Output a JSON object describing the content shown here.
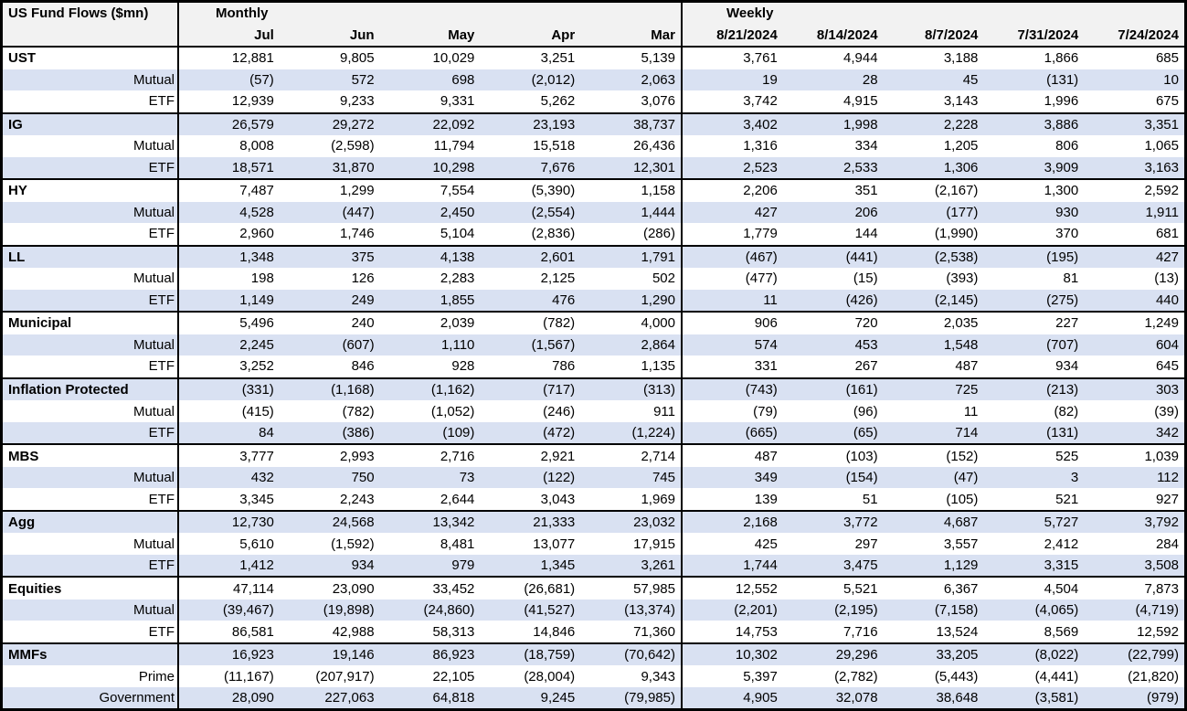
{
  "chart_data": {
    "type": "table",
    "title": "US Fund Flows ($mn)",
    "section_labels": {
      "monthly": "Monthly",
      "weekly": "Weekly"
    },
    "monthly_columns": [
      "Jul",
      "Jun",
      "May",
      "Apr",
      "Mar"
    ],
    "weekly_columns": [
      "8/21/2024",
      "8/14/2024",
      "8/7/2024",
      "7/31/2024",
      "7/24/2024"
    ],
    "groups": [
      {
        "rows": [
          {
            "label": "UST",
            "monthly": [
              "12,881",
              "9,805",
              "10,029",
              "3,251",
              "5,139"
            ],
            "weekly": [
              "3,761",
              "4,944",
              "3,188",
              "1,866",
              "685"
            ]
          },
          {
            "label": "Mutual",
            "monthly": [
              "(57)",
              "572",
              "698",
              "(2,012)",
              "2,063"
            ],
            "weekly": [
              "19",
              "28",
              "45",
              "(131)",
              "10"
            ]
          },
          {
            "label": "ETF",
            "monthly": [
              "12,939",
              "9,233",
              "9,331",
              "5,262",
              "3,076"
            ],
            "weekly": [
              "3,742",
              "4,915",
              "3,143",
              "1,996",
              "675"
            ]
          }
        ]
      },
      {
        "rows": [
          {
            "label": "IG",
            "monthly": [
              "26,579",
              "29,272",
              "22,092",
              "23,193",
              "38,737"
            ],
            "weekly": [
              "3,402",
              "1,998",
              "2,228",
              "3,886",
              "3,351"
            ]
          },
          {
            "label": "Mutual",
            "monthly": [
              "8,008",
              "(2,598)",
              "11,794",
              "15,518",
              "26,436"
            ],
            "weekly": [
              "1,316",
              "334",
              "1,205",
              "806",
              "1,065"
            ]
          },
          {
            "label": "ETF",
            "monthly": [
              "18,571",
              "31,870",
              "10,298",
              "7,676",
              "12,301"
            ],
            "weekly": [
              "2,523",
              "2,533",
              "1,306",
              "3,909",
              "3,163"
            ]
          }
        ]
      },
      {
        "rows": [
          {
            "label": "HY",
            "monthly": [
              "7,487",
              "1,299",
              "7,554",
              "(5,390)",
              "1,158"
            ],
            "weekly": [
              "2,206",
              "351",
              "(2,167)",
              "1,300",
              "2,592"
            ]
          },
          {
            "label": "Mutual",
            "monthly": [
              "4,528",
              "(447)",
              "2,450",
              "(2,554)",
              "1,444"
            ],
            "weekly": [
              "427",
              "206",
              "(177)",
              "930",
              "1,911"
            ]
          },
          {
            "label": "ETF",
            "monthly": [
              "2,960",
              "1,746",
              "5,104",
              "(2,836)",
              "(286)"
            ],
            "weekly": [
              "1,779",
              "144",
              "(1,990)",
              "370",
              "681"
            ]
          }
        ]
      },
      {
        "rows": [
          {
            "label": "LL",
            "monthly": [
              "1,348",
              "375",
              "4,138",
              "2,601",
              "1,791"
            ],
            "weekly": [
              "(467)",
              "(441)",
              "(2,538)",
              "(195)",
              "427"
            ]
          },
          {
            "label": "Mutual",
            "monthly": [
              "198",
              "126",
              "2,283",
              "2,125",
              "502"
            ],
            "weekly": [
              "(477)",
              "(15)",
              "(393)",
              "81",
              "(13)"
            ]
          },
          {
            "label": "ETF",
            "monthly": [
              "1,149",
              "249",
              "1,855",
              "476",
              "1,290"
            ],
            "weekly": [
              "11",
              "(426)",
              "(2,145)",
              "(275)",
              "440"
            ]
          }
        ]
      },
      {
        "rows": [
          {
            "label": "Municipal",
            "monthly": [
              "5,496",
              "240",
              "2,039",
              "(782)",
              "4,000"
            ],
            "weekly": [
              "906",
              "720",
              "2,035",
              "227",
              "1,249"
            ]
          },
          {
            "label": "Mutual",
            "monthly": [
              "2,245",
              "(607)",
              "1,110",
              "(1,567)",
              "2,864"
            ],
            "weekly": [
              "574",
              "453",
              "1,548",
              "(707)",
              "604"
            ]
          },
          {
            "label": "ETF",
            "monthly": [
              "3,252",
              "846",
              "928",
              "786",
              "1,135"
            ],
            "weekly": [
              "331",
              "267",
              "487",
              "934",
              "645"
            ]
          }
        ]
      },
      {
        "rows": [
          {
            "label": "Inflation Protected",
            "monthly": [
              "(331)",
              "(1,168)",
              "(1,162)",
              "(717)",
              "(313)"
            ],
            "weekly": [
              "(743)",
              "(161)",
              "725",
              "(213)",
              "303"
            ]
          },
          {
            "label": "Mutual",
            "monthly": [
              "(415)",
              "(782)",
              "(1,052)",
              "(246)",
              "911"
            ],
            "weekly": [
              "(79)",
              "(96)",
              "11",
              "(82)",
              "(39)"
            ]
          },
          {
            "label": "ETF",
            "monthly": [
              "84",
              "(386)",
              "(109)",
              "(472)",
              "(1,224)"
            ],
            "weekly": [
              "(665)",
              "(65)",
              "714",
              "(131)",
              "342"
            ]
          }
        ]
      },
      {
        "rows": [
          {
            "label": "MBS",
            "monthly": [
              "3,777",
              "2,993",
              "2,716",
              "2,921",
              "2,714"
            ],
            "weekly": [
              "487",
              "(103)",
              "(152)",
              "525",
              "1,039"
            ]
          },
          {
            "label": "Mutual",
            "monthly": [
              "432",
              "750",
              "73",
              "(122)",
              "745"
            ],
            "weekly": [
              "349",
              "(154)",
              "(47)",
              "3",
              "112"
            ]
          },
          {
            "label": "ETF",
            "monthly": [
              "3,345",
              "2,243",
              "2,644",
              "3,043",
              "1,969"
            ],
            "weekly": [
              "139",
              "51",
              "(105)",
              "521",
              "927"
            ]
          }
        ]
      },
      {
        "rows": [
          {
            "label": "Agg",
            "monthly": [
              "12,730",
              "24,568",
              "13,342",
              "21,333",
              "23,032"
            ],
            "weekly": [
              "2,168",
              "3,772",
              "4,687",
              "5,727",
              "3,792"
            ]
          },
          {
            "label": "Mutual",
            "monthly": [
              "5,610",
              "(1,592)",
              "8,481",
              "13,077",
              "17,915"
            ],
            "weekly": [
              "425",
              "297",
              "3,557",
              "2,412",
              "284"
            ]
          },
          {
            "label": "ETF",
            "monthly": [
              "1,412",
              "934",
              "979",
              "1,345",
              "3,261"
            ],
            "weekly": [
              "1,744",
              "3,475",
              "1,129",
              "3,315",
              "3,508"
            ]
          }
        ]
      },
      {
        "rows": [
          {
            "label": "Equities",
            "monthly": [
              "47,114",
              "23,090",
              "33,452",
              "(26,681)",
              "57,985"
            ],
            "weekly": [
              "12,552",
              "5,521",
              "6,367",
              "4,504",
              "7,873"
            ]
          },
          {
            "label": "Mutual",
            "monthly": [
              "(39,467)",
              "(19,898)",
              "(24,860)",
              "(41,527)",
              "(13,374)"
            ],
            "weekly": [
              "(2,201)",
              "(2,195)",
              "(7,158)",
              "(4,065)",
              "(4,719)"
            ]
          },
          {
            "label": "ETF",
            "monthly": [
              "86,581",
              "42,988",
              "58,313",
              "14,846",
              "71,360"
            ],
            "weekly": [
              "14,753",
              "7,716",
              "13,524",
              "8,569",
              "12,592"
            ]
          }
        ]
      },
      {
        "rows": [
          {
            "label": "MMFs",
            "monthly": [
              "16,923",
              "19,146",
              "86,923",
              "(18,759)",
              "(70,642)"
            ],
            "weekly": [
              "10,302",
              "29,296",
              "33,205",
              "(8,022)",
              "(22,799)"
            ]
          },
          {
            "label": "Prime",
            "monthly": [
              "(11,167)",
              "(207,917)",
              "22,105",
              "(28,004)",
              "9,343"
            ],
            "weekly": [
              "5,397",
              "(2,782)",
              "(5,443)",
              "(4,441)",
              "(21,820)"
            ]
          },
          {
            "label": "Government",
            "monthly": [
              "28,090",
              "227,063",
              "64,818",
              "9,245",
              "(79,985)"
            ],
            "weekly": [
              "4,905",
              "32,078",
              "38,648",
              "(3,581)",
              "(979)"
            ]
          }
        ]
      }
    ],
    "layout": {
      "stripe_color": "#d9e1f2",
      "header_bg": "#f2f2f2",
      "border_color": "#000000",
      "text_color": "#000000"
    }
  }
}
